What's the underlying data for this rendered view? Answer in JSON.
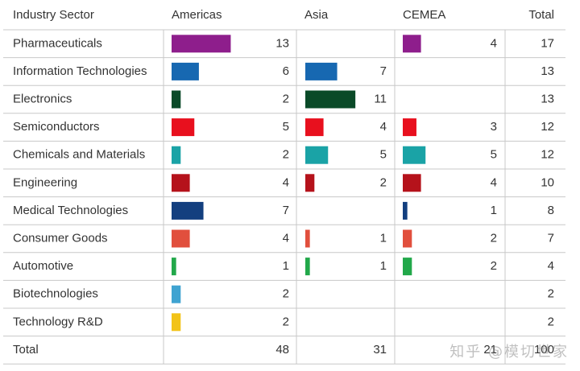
{
  "chart_data": {
    "type": "table",
    "headers": [
      "Industry Sector",
      "Americas",
      "Asia",
      "CEMEA",
      "Total"
    ],
    "rows": [
      {
        "sector": "Pharmaceuticals",
        "americas": 13,
        "asia": null,
        "cemea": 4,
        "total": 17,
        "color": "#8E1E8C"
      },
      {
        "sector": "Information Technologies",
        "americas": 6,
        "asia": 7,
        "cemea": null,
        "total": 13,
        "color": "#1768B1"
      },
      {
        "sector": "Electronics",
        "americas": 2,
        "asia": 11,
        "cemea": null,
        "total": 13,
        "color": "#0A4A28"
      },
      {
        "sector": "Semiconductors",
        "americas": 5,
        "asia": 4,
        "cemea": 3,
        "total": 12,
        "color": "#E8101E"
      },
      {
        "sector": "Chemicals and Materials",
        "americas": 2,
        "asia": 5,
        "cemea": 5,
        "total": 12,
        "color": "#1AA3A6"
      },
      {
        "sector": "Engineering",
        "americas": 4,
        "asia": 2,
        "cemea": 4,
        "total": 10,
        "color": "#B5121B"
      },
      {
        "sector": "Medical Technologies",
        "americas": 7,
        "asia": null,
        "cemea": 1,
        "total": 8,
        "color": "#133F7F"
      },
      {
        "sector": "Consumer Goods",
        "americas": 4,
        "asia": 1,
        "cemea": 2,
        "total": 7,
        "color": "#E14F3D"
      },
      {
        "sector": "Automotive",
        "americas": 1,
        "asia": 1,
        "cemea": 2,
        "total": 4,
        "color": "#22A84A"
      },
      {
        "sector": "Biotechnologies",
        "americas": 2,
        "asia": null,
        "cemea": null,
        "total": 2,
        "color": "#3FA3D1"
      },
      {
        "sector": "Technology R&D",
        "americas": 2,
        "asia": null,
        "cemea": null,
        "total": 2,
        "color": "#F2C318"
      }
    ],
    "totals": {
      "label": "Total",
      "americas": 48,
      "asia": 31,
      "cemea": 21,
      "total": 100
    },
    "grid": true
  },
  "watermark": "知乎 @模切世家"
}
